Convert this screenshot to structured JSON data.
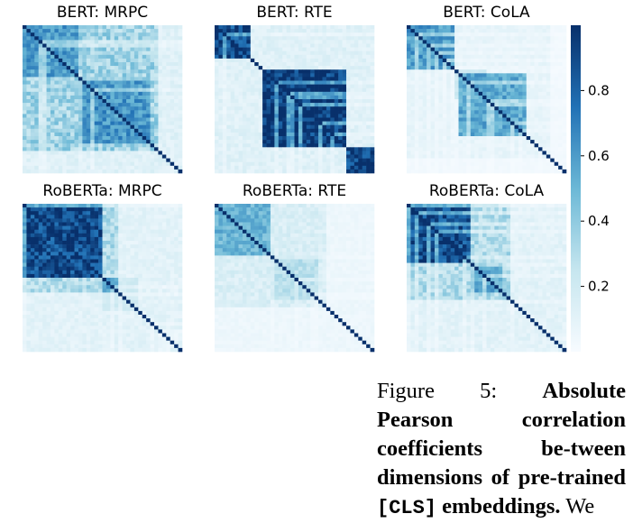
{
  "chart_data": {
    "type": "heatmap",
    "colormap": "Blues",
    "colors": {
      "low": "#f7fbff",
      "mid": "#6bb8d6",
      "high": "#08306b"
    },
    "colorbar": {
      "range": [
        0,
        1
      ],
      "ticks": [
        "0.2",
        "0.4",
        "0.6",
        "0.8"
      ],
      "tick_values": [
        0.2,
        0.4,
        0.6,
        0.8
      ]
    },
    "panels": [
      {
        "title": "BERT: MRPC",
        "blocks": [
          [
            0.0,
            0.35,
            0.6
          ],
          [
            0.35,
            0.8,
            0.62
          ]
        ],
        "base": 0.35,
        "fade_start": 0.85
      },
      {
        "title": "BERT: RTE",
        "blocks": [
          [
            0.0,
            0.22,
            0.9
          ],
          [
            0.3,
            0.82,
            0.96
          ],
          [
            0.82,
            1.0,
            0.9
          ]
        ],
        "base": 0.12,
        "fade_start": 1.0
      },
      {
        "title": "BERT: CoLA",
        "blocks": [
          [
            0.0,
            0.3,
            0.6
          ],
          [
            0.3,
            0.5,
            0.35
          ],
          [
            0.32,
            0.75,
            0.55
          ]
        ],
        "base": 0.08,
        "fade_start": 0.9
      },
      {
        "title": "RoBERTa: MRPC",
        "blocks": [
          [
            0.0,
            0.5,
            0.9
          ],
          [
            0.5,
            0.72,
            0.55
          ]
        ],
        "base": 0.3,
        "fade_start": 0.6
      },
      {
        "title": "RoBERTa: RTE",
        "blocks": [
          [
            0.0,
            0.35,
            0.5
          ],
          [
            0.35,
            0.65,
            0.28
          ]
        ],
        "base": 0.15,
        "fade_start": 0.7
      },
      {
        "title": "RoBERTa: CoLA",
        "blocks": [
          [
            0.0,
            0.4,
            0.88
          ],
          [
            0.4,
            0.6,
            0.55
          ]
        ],
        "base": 0.3,
        "fade_start": 0.65
      }
    ]
  },
  "caption": {
    "label": "Figure 5:",
    "bold_part1": "Absolute Pearson correlation coefficients be-tween dimensions of pre-trained",
    "code": "[CLS]",
    "bold_part2": "embeddings.",
    "tail": "We"
  }
}
